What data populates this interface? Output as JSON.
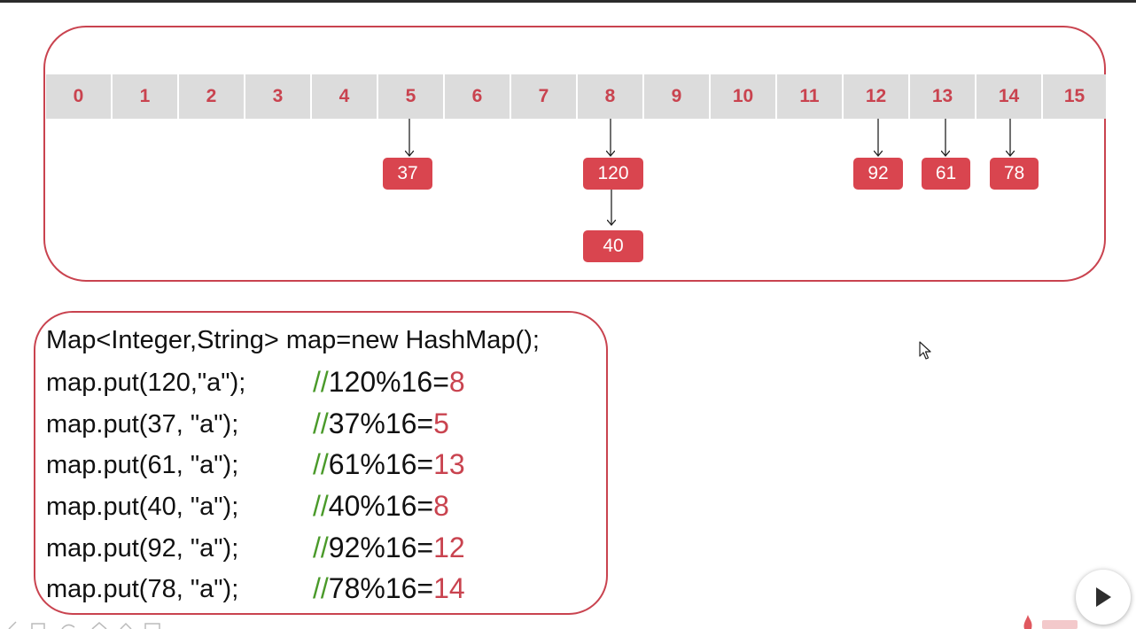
{
  "buckets": [
    "0",
    "1",
    "2",
    "3",
    "4",
    "5",
    "6",
    "7",
    "8",
    "9",
    "10",
    "11",
    "12",
    "13",
    "14",
    "15"
  ],
  "nodes": {
    "n37": "37",
    "n120": "120",
    "n40": "40",
    "n92": "92",
    "n61": "61",
    "n78": "78"
  },
  "code": {
    "declaration": "Map<Integer,String> map=new HashMap();",
    "lines": [
      {
        "call": "map.put(120,\"a\");",
        "slashes": "//",
        "expr": "120%16=",
        "result": "8"
      },
      {
        "call": "map.put(37, \"a\");",
        "slashes": "//",
        "expr": "37%16=",
        "result": "5"
      },
      {
        "call": "map.put(61, \"a\");",
        "slashes": "//",
        "expr": "61%16=",
        "result": "13"
      },
      {
        "call": "map.put(40, \"a\");",
        "slashes": "//",
        "expr": "40%16=",
        "result": "8"
      },
      {
        "call": "map.put(92, \"a\");",
        "slashes": "//",
        "expr": "92%16=",
        "result": "12"
      },
      {
        "call": "map.put(78, \"a\");",
        "slashes": "//",
        "expr": "78%16=",
        "result": "14"
      }
    ]
  },
  "colors": {
    "accent_red": "#c9434f",
    "node_red": "#d9454f",
    "bucket_gray": "#dcdcdc",
    "comment_green": "#4a9a2a"
  },
  "icons": {
    "cursor": "mouse-cursor-icon",
    "play": "play-icon",
    "logo": "site-logo-icon"
  }
}
